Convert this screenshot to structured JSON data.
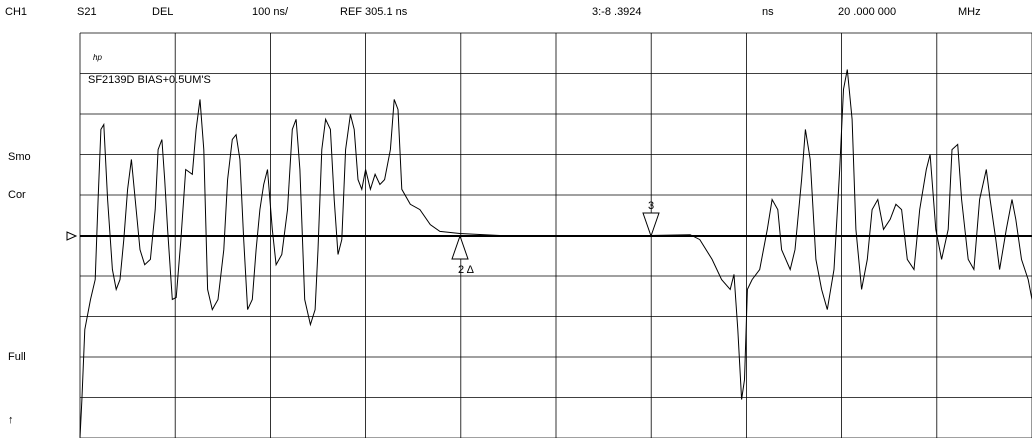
{
  "header": [
    "CH1",
    "S21",
    "DEL",
    "100 ns/",
    "REF 305.1 ns",
    "3:-8 .3924",
    "ns",
    "20 .000 000",
    "MHz"
  ],
  "side_labels": [
    "Smo",
    "Cor",
    "Full",
    "↑"
  ],
  "annotation": {
    "logo": "hp",
    "text": "SF2139D BIAS+0.5UM'S"
  },
  "markers": [
    {
      "label": "3"
    },
    {
      "label": "2 Δ"
    }
  ],
  "trace": {
    "x": [
      0,
      0.02,
      0.05,
      0.11,
      0.16,
      0.19,
      0.22,
      0.25,
      0.29,
      0.34,
      0.38,
      0.42,
      0.46,
      0.5,
      0.54,
      0.58,
      0.63,
      0.68,
      0.74,
      0.79,
      0.82,
      0.86,
      0.89,
      0.92,
      0.97,
      1.01,
      1.06,
      1.11,
      1.18,
      1.22,
      1.26,
      1.3,
      1.34,
      1.39,
      1.45,
      1.51,
      1.55,
      1.6,
      1.64,
      1.68,
      1.72,
      1.76,
      1.81,
      1.85,
      1.89,
      1.93,
      1.97,
      2.02,
      2.06,
      2.12,
      2.18,
      2.23,
      2.27,
      2.31,
      2.36,
      2.42,
      2.47,
      2.5,
      2.54,
      2.58,
      2.63,
      2.67,
      2.71,
      2.75,
      2.79,
      2.84,
      2.88,
      2.92,
      2.96,
      3.0,
      3.05,
      3.1,
      3.15,
      3.2,
      3.26,
      3.3,
      3.34,
      3.38,
      3.47,
      3.57,
      3.68,
      3.78,
      3.99,
      4.41,
      5.46,
      5.99,
      6.41,
      6.51,
      6.64,
      6.74,
      6.83,
      6.87,
      6.91,
      6.95,
      6.98,
      7.01,
      7.06,
      7.14,
      7.22,
      7.27,
      7.33,
      7.37,
      7.46,
      7.51,
      7.58,
      7.62,
      7.67,
      7.73,
      7.79,
      7.85,
      7.92,
      7.98,
      8.02,
      8.06,
      8.11,
      8.15,
      8.21,
      8.27,
      8.32,
      8.38,
      8.44,
      8.51,
      8.57,
      8.63,
      8.69,
      8.76,
      8.82,
      8.89,
      8.93,
      8.99,
      9.05,
      9.12,
      9.16,
      9.22,
      9.26,
      9.33,
      9.39,
      9.45,
      9.52,
      9.56,
      9.62,
      9.66,
      9.73,
      9.79,
      9.83,
      9.89,
      9.96,
      10
    ],
    "values": [
      -4.99,
      -4.05,
      -2.32,
      -1.58,
      -1.09,
      0.89,
      2.62,
      2.74,
      0.89,
      -0.84,
      -1.33,
      -1.09,
      -0.1,
      1.14,
      1.88,
      0.89,
      -0.35,
      -0.72,
      -0.59,
      0.64,
      2.12,
      2.37,
      1.38,
      0.15,
      -1.58,
      -1.53,
      -0.1,
      1.63,
      1.51,
      2.62,
      3.36,
      2.12,
      -1.33,
      -1.83,
      -1.58,
      -0.35,
      1.38,
      2.37,
      2.49,
      1.88,
      -0.1,
      -1.83,
      -1.58,
      -0.35,
      0.64,
      1.26,
      1.63,
      0.15,
      -0.72,
      -0.47,
      0.64,
      2.62,
      2.87,
      1.63,
      -1.58,
      -2.2,
      -1.83,
      -0.35,
      2.12,
      2.87,
      2.62,
      0.89,
      -0.47,
      -0.1,
      2.12,
      2.99,
      2.62,
      1.38,
      1.14,
      1.63,
      1.14,
      1.51,
      1.26,
      1.38,
      2.12,
      3.36,
      3.11,
      1.14,
      0.77,
      0.64,
      0.27,
      0.1,
      0.05,
      0,
      -0.02,
      0,
      0.02,
      -0.1,
      -0.59,
      -1.09,
      -1.33,
      -0.96,
      -2.32,
      -4.05,
      -3.56,
      -1.33,
      -1.09,
      -0.84,
      0.15,
      0.89,
      0.64,
      -0.35,
      -0.84,
      -0.35,
      1.38,
      2.62,
      1.88,
      -0.59,
      -1.33,
      -1.83,
      -0.84,
      1.63,
      3.61,
      4.1,
      2.87,
      0.15,
      -1.33,
      -0.59,
      0.64,
      0.89,
      0.15,
      0.4,
      0.77,
      0.64,
      -0.59,
      -0.84,
      0.64,
      1.63,
      2.0,
      0.15,
      -0.59,
      0.15,
      2.12,
      2.25,
      0.89,
      -0.59,
      -0.84,
      0.89,
      1.63,
      0.89,
      -0.1,
      -0.84,
      0.15,
      0.89,
      0.4,
      -0.59,
      -1.09,
      -1.58
    ]
  }
}
